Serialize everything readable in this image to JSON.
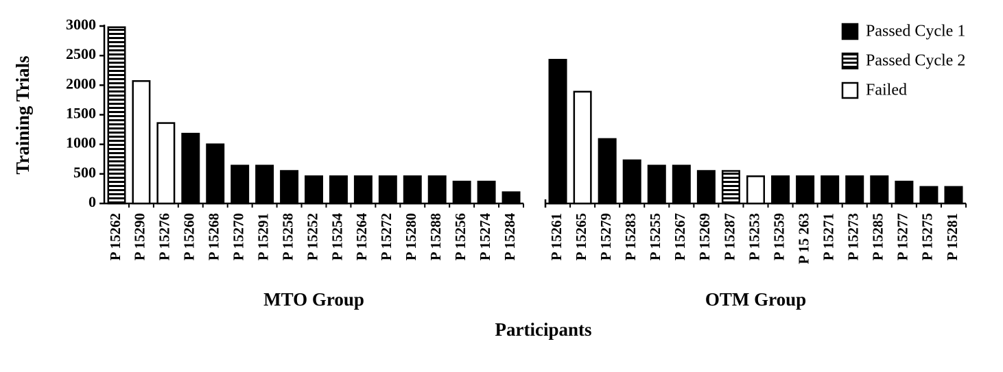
{
  "chart_data": {
    "type": "bar",
    "ylabel": "Training Trials",
    "xlabel": "Participants",
    "ylim": [
      0,
      3000
    ],
    "yticks": [
      0,
      500,
      1000,
      1500,
      2000,
      2500,
      3000
    ],
    "legend": "upper right",
    "groups": [
      {
        "label": "MTO Group",
        "categories": [
          "P 15262",
          "P 15290",
          "P 15276",
          "P 15260",
          "P 15268",
          "P 15270",
          "P 15291",
          "P 15258",
          "P 15252",
          "P 15254",
          "P 15264",
          "P 15272",
          "P 15280",
          "P 15288",
          "P 15256",
          "P 15274",
          "P 15284"
        ]
      },
      {
        "label": "OTM Group",
        "categories": [
          "P 15261",
          "P 15265",
          "P 15279",
          "P 15283",
          "P 15255",
          "P 15267",
          "P 15269",
          "P 15287",
          "P 15253",
          "P 15259",
          "P 15 263",
          "P 15271",
          "P 15273",
          "P 15285",
          "P 15277",
          "P 15275",
          "P 15281"
        ]
      }
    ],
    "series": [
      {
        "name": "Passed  Cycle 1",
        "color": "#000000",
        "values": [
          null,
          null,
          null,
          1180,
          1000,
          640,
          640,
          550,
          460,
          460,
          460,
          460,
          460,
          460,
          370,
          370,
          190,
          2430,
          null,
          1090,
          730,
          640,
          640,
          550,
          null,
          null,
          460,
          460,
          460,
          460,
          460,
          370,
          280,
          280
        ]
      },
      {
        "name": "Passed  Cycle 2",
        "color": "#000000",
        "hatch": "horizontal",
        "values": [
          2980,
          null,
          null,
          null,
          null,
          null,
          null,
          null,
          null,
          null,
          null,
          null,
          null,
          null,
          null,
          null,
          null,
          null,
          null,
          null,
          null,
          null,
          null,
          null,
          550,
          null,
          null,
          null,
          null,
          null,
          null,
          null,
          null,
          null
        ]
      },
      {
        "name": "Failed",
        "color": "#ffffff",
        "values": [
          null,
          2070,
          1360,
          null,
          null,
          null,
          null,
          null,
          null,
          null,
          null,
          null,
          null,
          null,
          null,
          null,
          null,
          null,
          1890,
          null,
          null,
          null,
          null,
          null,
          null,
          460,
          null,
          null,
          null,
          null,
          null,
          null,
          null,
          null
        ]
      }
    ]
  }
}
